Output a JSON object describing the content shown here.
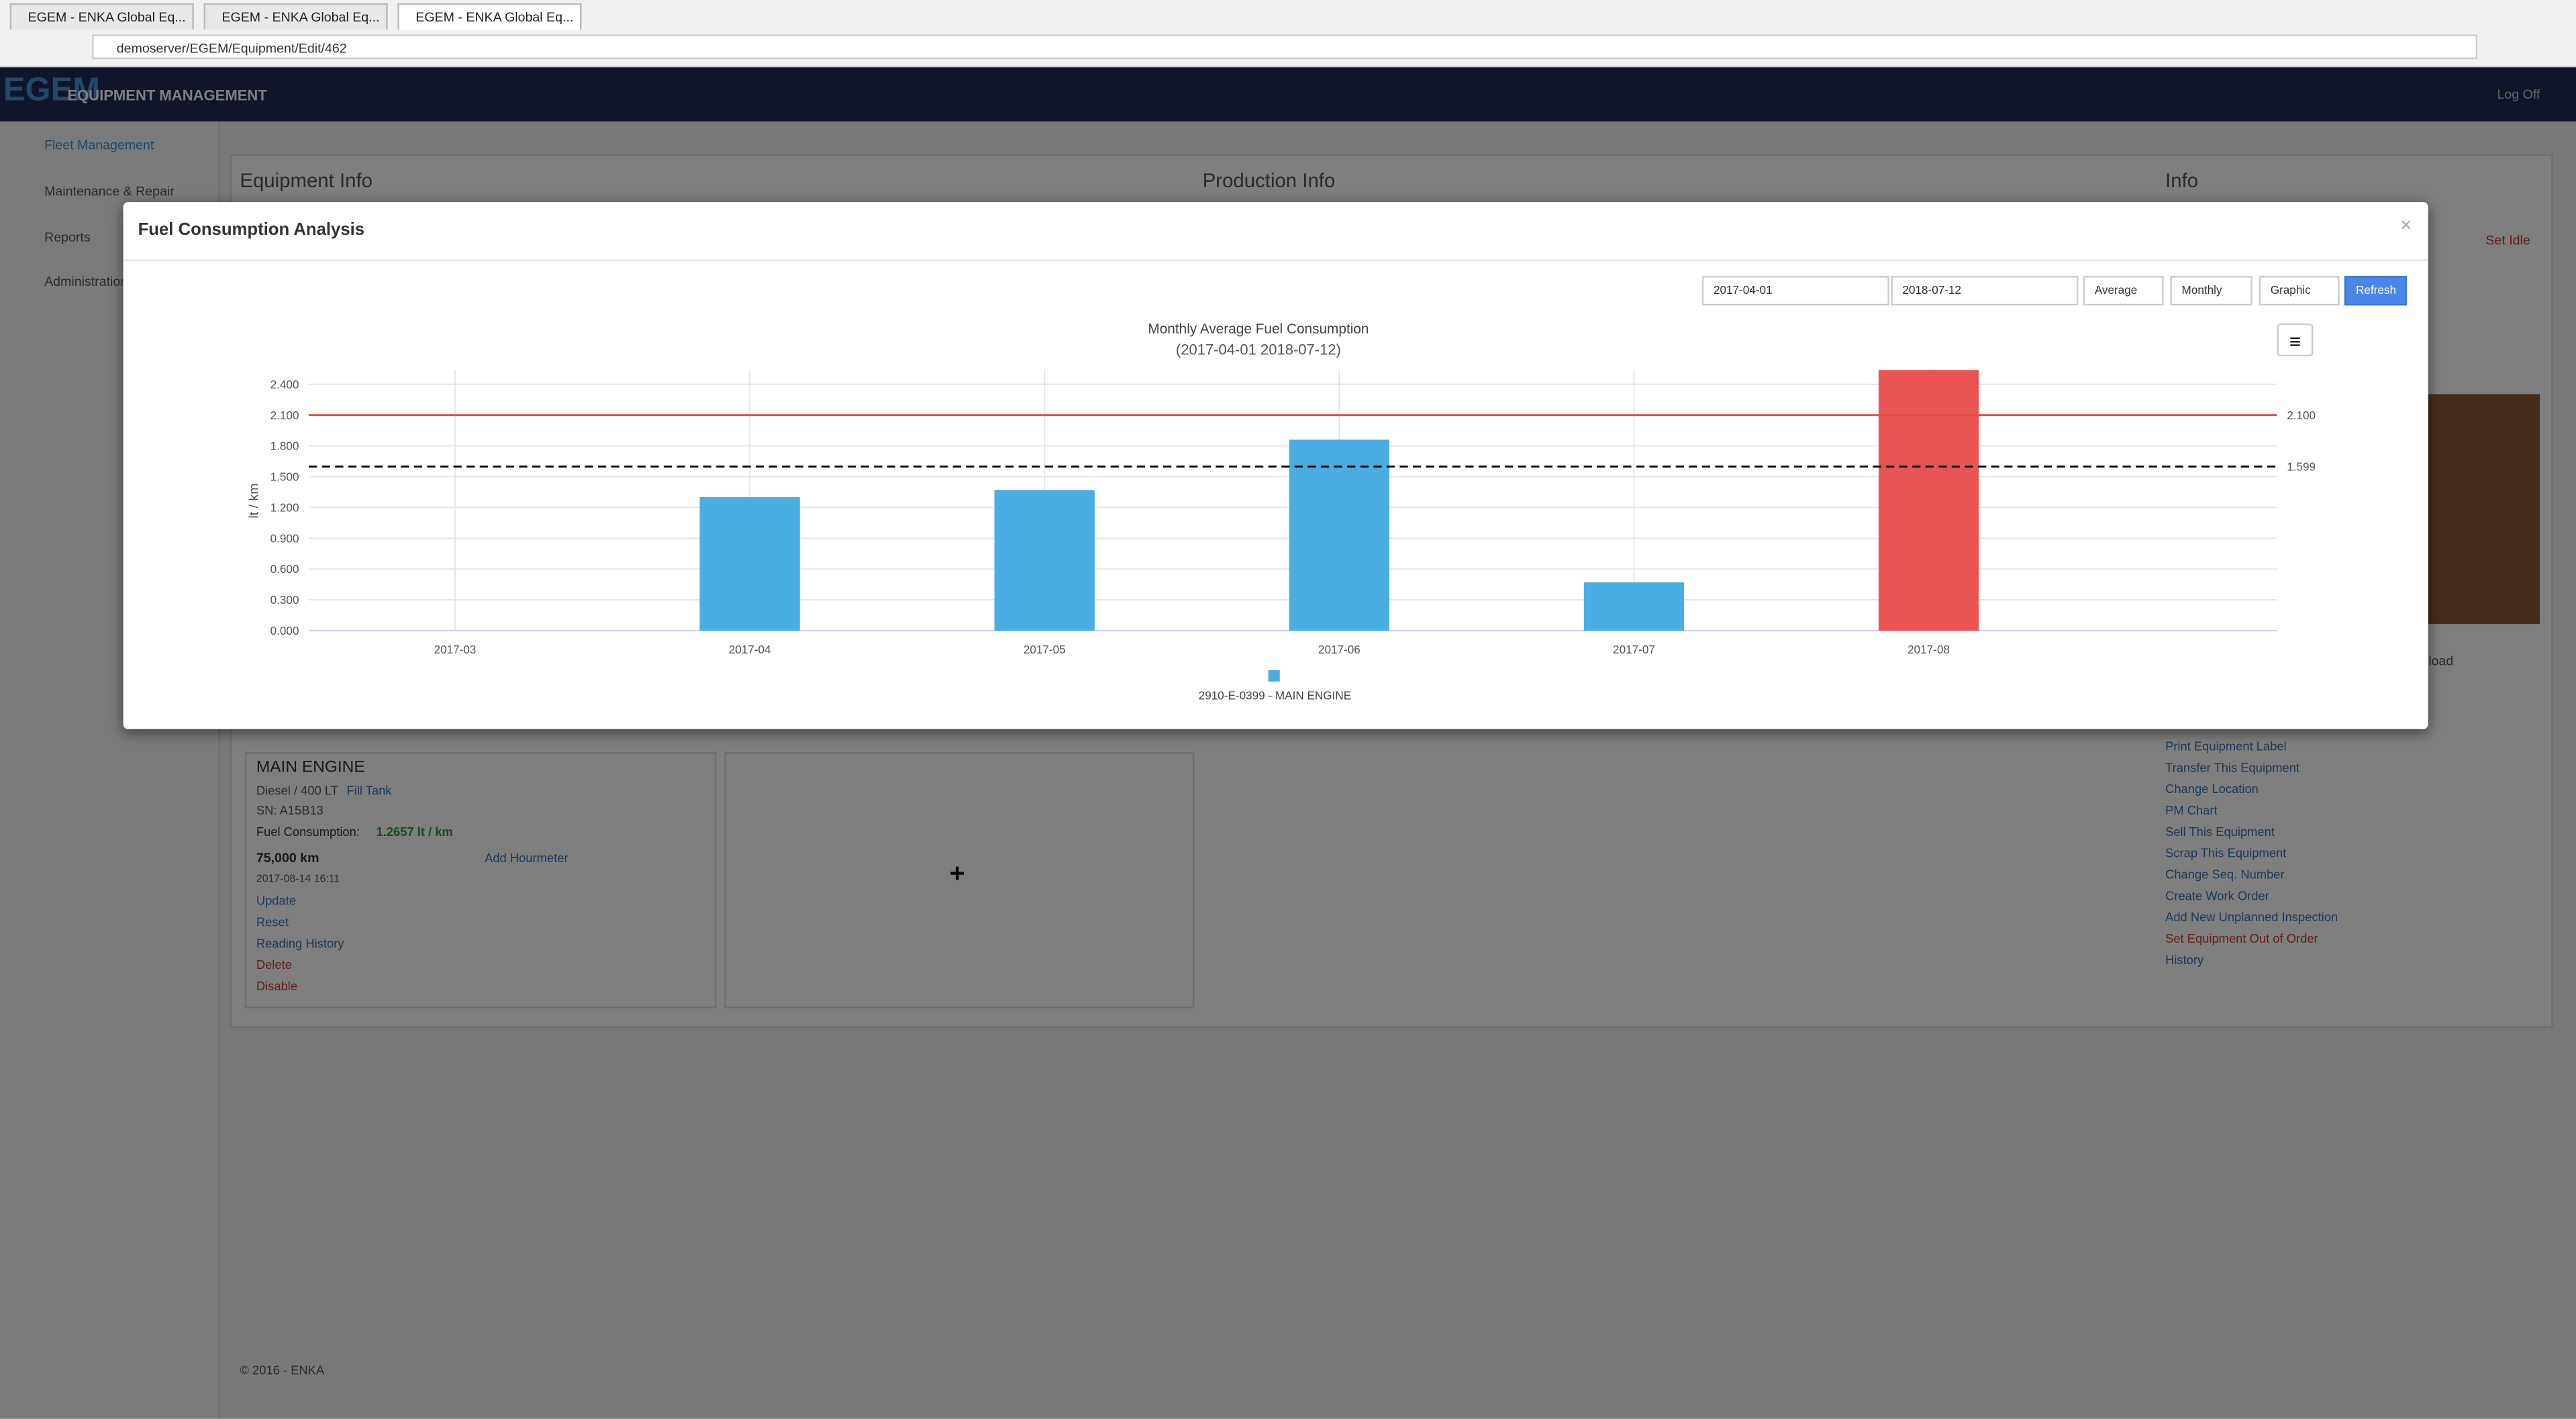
{
  "browser": {
    "tabs": [
      "EGEM - ENKA Global Eq...",
      "EGEM - ENKA Global Eq...",
      "EGEM - ENKA Global Eq..."
    ],
    "url": "demoserver/EGEM/Equipment/Edit/462"
  },
  "header": {
    "logo": "EGEM",
    "brand": "EQUIPMENT MANAGEMENT",
    "logoff": "Log Off"
  },
  "sidebar": [
    "Fleet Management",
    "Maintenance & Repair",
    "Reports",
    "Administration"
  ],
  "page": {
    "sections": [
      "Equipment Info",
      "Production Info",
      "Info"
    ],
    "set_idle": "Set Idle",
    "upload": "Upload",
    "engine": {
      "title": "MAIN ENGINE",
      "fuel": "Diesel / 400 LT",
      "fill": "Fill Tank",
      "sn": "SN: A15B13",
      "consumption_label": "Fuel Consumption:",
      "consumption": "1.2657 lt / km",
      "km": "75,000 km",
      "hourmeter": "Add Hourmeter",
      "date": "2017-08-14 16:11",
      "actions": [
        "Update",
        "Reset",
        "Reading History"
      ],
      "danger": [
        "Delete",
        "Disable"
      ]
    },
    "links": [
      "Print Equipment Label",
      "Transfer This Equipment",
      "Change Location",
      "PM Chart",
      "Sell This Equipment",
      "Scrap This Equipment",
      "Change Seq. Number",
      "Create Work Order",
      "Add New Unplanned Inspection"
    ],
    "danger_link": "Set Equipment Out of Order",
    "history": "History",
    "footer": "© 2016 - ENKA"
  },
  "modal": {
    "title": "Fuel Consumption Analysis",
    "controls": {
      "from": "2017-04-01",
      "to": "2018-07-12",
      "method": "Average",
      "period": "Monthly",
      "view": "Graphic",
      "refresh": "Refresh"
    }
  },
  "chart_data": {
    "type": "bar",
    "title": "Monthly Average Fuel Consumption",
    "subtitle": "(2017-04-01 2018-07-12)",
    "y_label": "lt / km",
    "categories": [
      "2017-03",
      "2017-04",
      "2017-05",
      "2017-06",
      "2017-07",
      "2017-08"
    ],
    "series": [
      {
        "name": "2910-E-0399 - MAIN ENGINE",
        "color": "#4aaee2",
        "values": [
          null,
          1.3,
          1.37,
          1.86,
          0.47,
          2.54
        ],
        "point_colors": [
          "#4aaee2",
          "#4aaee2",
          "#4aaee2",
          "#4aaee2",
          "#4aaee2",
          "#e95555"
        ]
      }
    ],
    "ylim": [
      0,
      2.4
    ],
    "yticks": [
      {
        "value": 0,
        "label": "0.000"
      },
      {
        "value": 0.3,
        "label": "0.300"
      },
      {
        "value": 0.6,
        "label": "0.600"
      },
      {
        "value": 0.9,
        "label": "0.900"
      },
      {
        "value": 1.2,
        "label": "1.200"
      },
      {
        "value": 1.5,
        "label": "1.500"
      },
      {
        "value": 1.8,
        "label": "1.800"
      },
      {
        "value": 2.1,
        "label": "2.100"
      },
      {
        "value": 2.4,
        "label": "2.400"
      }
    ],
    "reference_lines": [
      {
        "value": 2.1,
        "label": "2.100",
        "color": "#e84a4a",
        "style": "solid"
      },
      {
        "value": 1.599,
        "label": "1.599",
        "color": "#000000",
        "style": "dashed"
      }
    ],
    "grid": true
  }
}
